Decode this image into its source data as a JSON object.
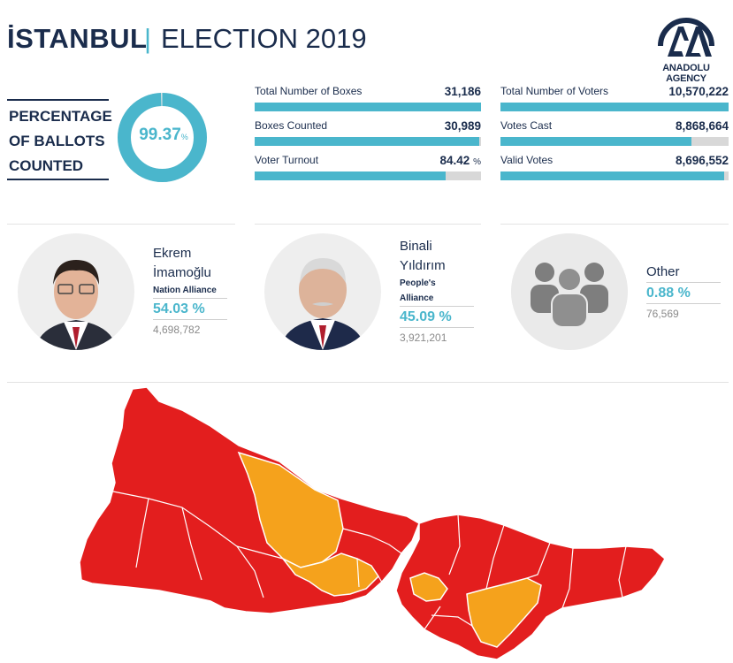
{
  "header": {
    "city": "İSTANBUL",
    "separator": "|",
    "event": "ELECTION 2019",
    "logo_icon": "anadolu-agency-logo",
    "logo_text": "ANADOLU AGENCY"
  },
  "ballots": {
    "label_lines": [
      "PERCENTAGE",
      "OF BALLOTS",
      "COUNTED"
    ],
    "percent": "99.37",
    "percent_unit": "%",
    "percent_value": 99.37
  },
  "stats": [
    {
      "label": "Total Number of Boxes",
      "value": "31,186",
      "unit": "",
      "fill": 1.0
    },
    {
      "label": "Boxes Counted",
      "value": "30,989",
      "unit": "",
      "fill": 0.9937
    },
    {
      "label": "Voter Turnout",
      "value": "84.42",
      "unit": "%",
      "fill": 0.8442
    },
    {
      "label": "Total Number of Voters",
      "value": "10,570,222",
      "unit": "",
      "fill": 1.0
    },
    {
      "label": "Votes Cast",
      "value": "8,868,664",
      "unit": "",
      "fill": 0.839
    },
    {
      "label": "Valid Votes",
      "value": "8,696,552",
      "unit": "",
      "fill": 0.98
    }
  ],
  "candidates": [
    {
      "name_lines": [
        "Ekrem",
        "İmamoğlu"
      ],
      "alliance_lines": [
        "Nation Alliance"
      ],
      "percent": "54.03 %",
      "votes": "4,698,782",
      "icon": "candidate-photo"
    },
    {
      "name_lines": [
        "Binali",
        "Yıldırım"
      ],
      "alliance_lines": [
        "People's",
        "Alliance"
      ],
      "percent": "45.09 %",
      "votes": "3,921,201",
      "icon": "candidate-photo"
    },
    {
      "name_lines": [
        "Other"
      ],
      "alliance_lines": [],
      "percent": "0.88 %",
      "votes": "76,569",
      "icon": "people-group-icon"
    }
  ],
  "colors": {
    "navy": "#1a2c4c",
    "accent": "#4ab6cc",
    "imamoglu_red": "#e31e1e",
    "yildirim_orange": "#f5a21c"
  },
  "map": {
    "icon": "istanbul-district-results-map"
  }
}
